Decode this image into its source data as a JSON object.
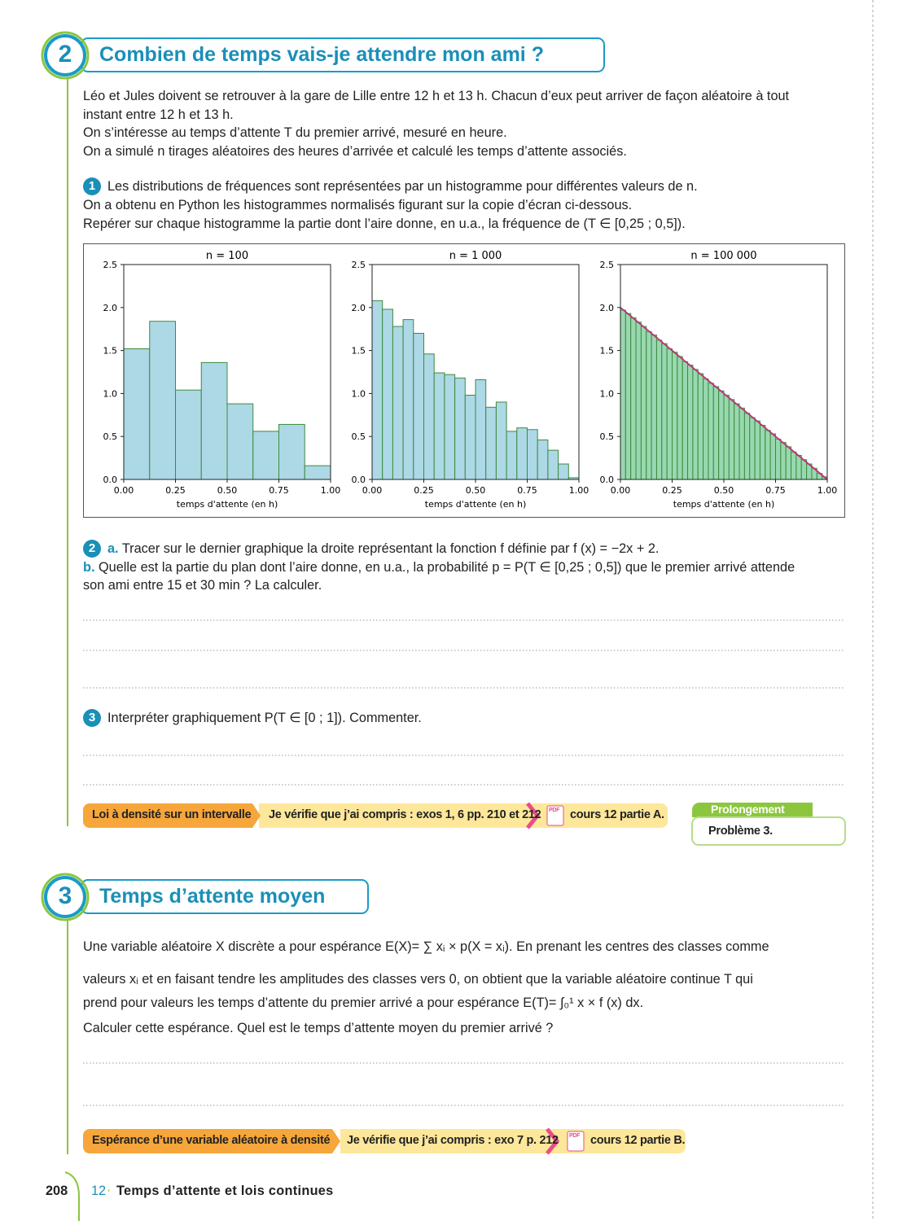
{
  "section_2": {
    "number": "2",
    "title": "Combien de temps vais-je attendre mon ami ?",
    "intro": [
      "Léo et Jules doivent se retrouver à la gare de Lille entre 12 h et 13 h. Chacun d’eux peut arriver de façon aléatoire à tout",
      "instant entre 12 h et 13 h.",
      "On s’intéresse au temps d’attente T du premier arrivé, mesuré en heure.",
      "On a simulé n tirages aléatoires des heures d’arrivée et calculé les temps d’attente associés."
    ],
    "q1": {
      "number": "1",
      "lines": [
        "Les distributions de fréquences sont représentées par un histogramme pour différentes valeurs de n.",
        "On a obtenu en Python les histogrammes normalisés figurant sur la copie d’écran ci-dessous.",
        "Repérer sur chaque histogramme la partie dont l’aire donne, en u.a., la fréquence de (T ∈ [0,25 ; 0,5])."
      ]
    },
    "q2": {
      "number": "2",
      "a_label": "a.",
      "a_text": "Tracer sur le dernier graphique la droite représentant la fonction f définie par f (x) = −2x + 2.",
      "b_label": "b.",
      "b_text": "Quelle est la partie du plan dont l’aire donne, en u.a., la probabilité p = P(T ∈ [0,25 ; 0,5]) que le premier arrivé attende",
      "b_text_2": "son ami entre 15 et 30 min ? La calculer."
    },
    "q3": {
      "number": "3",
      "text": "Interpréter graphiquement P(T ∈ [0 ; 1]). Commenter."
    },
    "bar": {
      "topic": "Loi à densité sur un intervalle",
      "check": "Je vérifie que j’ai compris : exos 1, 6 pp. 210 et 212",
      "pdf": "PDF",
      "course": "cours 12 partie A."
    },
    "extension": {
      "label": "Prolongement",
      "text": "Problème 3."
    }
  },
  "chart_data": [
    {
      "type": "histogram",
      "title": "n = 100",
      "xlabel": "temps d'attente (en h)",
      "color": "#add8e6",
      "edgecolor": "#3d8b3d",
      "bins": [
        0,
        0.125,
        0.25,
        0.375,
        0.5,
        0.625,
        0.75,
        0.875,
        1
      ],
      "values": [
        1.52,
        1.84,
        1.04,
        1.36,
        0.88,
        0.56,
        0.64,
        0.16
      ],
      "xlim": [
        0,
        1
      ],
      "ylim": [
        0,
        2.5
      ],
      "xticks": [
        {
          "value": 0,
          "label": "0.00"
        },
        0.25,
        {
          "value": 0.5,
          "label": "0.50"
        },
        0.75,
        {
          "value": 1,
          "label": "1.00"
        }
      ],
      "yticks": [
        {
          "value": 0,
          "label": "0.0"
        },
        0.5,
        {
          "value": 1,
          "label": "1.0"
        },
        1.5,
        {
          "value": 2,
          "label": "2.0"
        },
        2.5
      ]
    },
    {
      "type": "histogram",
      "title": "n = 1 000",
      "xlabel": "temps d'attente (en h)",
      "color": "#add8e6",
      "edgecolor": "#3d8b3d",
      "bins": [
        0,
        0.05,
        0.1,
        0.15,
        0.2,
        0.25,
        0.3,
        0.35,
        0.4,
        0.45,
        0.5,
        0.55,
        0.6,
        0.65,
        0.7,
        0.75,
        0.8,
        0.85,
        0.9,
        0.95,
        1
      ],
      "values": [
        2.08,
        1.98,
        1.78,
        1.86,
        1.7,
        1.46,
        1.24,
        1.22,
        1.18,
        0.98,
        1.16,
        0.84,
        0.9,
        0.56,
        0.6,
        0.58,
        0.46,
        0.34,
        0.18,
        0.02
      ],
      "xlim": [
        0,
        1
      ],
      "ylim": [
        0,
        2.5
      ],
      "xticks": [
        {
          "value": 0,
          "label": "0.00"
        },
        0.25,
        {
          "value": 0.5,
          "label": "0.50"
        },
        0.75,
        {
          "value": 1,
          "label": "1.00"
        }
      ],
      "yticks": [
        {
          "value": 0,
          "label": "0.0"
        },
        0.5,
        {
          "value": 1,
          "label": "1.0"
        },
        1.5,
        {
          "value": 2,
          "label": "2.0"
        },
        2.5
      ]
    },
    {
      "type": "histogram",
      "title": "n = 100 000",
      "xlabel": "temps d'attente (en h)",
      "color": "#98d8b0",
      "edgecolor": "#3d8b3d",
      "bins": [
        0,
        0.025,
        0.05,
        0.075,
        0.1,
        0.125,
        0.15,
        0.175,
        0.2,
        0.225,
        0.25,
        0.275,
        0.3,
        0.325,
        0.35,
        0.375,
        0.4,
        0.425,
        0.45,
        0.475,
        0.5,
        0.525,
        0.55,
        0.575,
        0.6,
        0.625,
        0.65,
        0.675,
        0.7,
        0.725,
        0.75,
        0.775,
        0.8,
        0.825,
        0.85,
        0.875,
        0.9,
        0.925,
        0.95,
        0.975,
        1
      ],
      "values": [
        1.97,
        1.93,
        1.88,
        1.83,
        1.78,
        1.72,
        1.68,
        1.62,
        1.58,
        1.52,
        1.48,
        1.43,
        1.37,
        1.33,
        1.28,
        1.23,
        1.17,
        1.12,
        1.08,
        1.03,
        0.98,
        0.93,
        0.88,
        0.83,
        0.77,
        0.72,
        0.68,
        0.63,
        0.57,
        0.53,
        0.47,
        0.43,
        0.38,
        0.32,
        0.28,
        0.23,
        0.18,
        0.13,
        0.07,
        0.03
      ],
      "line": {
        "x": [
          0,
          1
        ],
        "values": [
          2,
          0
        ],
        "color": "#c0307a"
      },
      "xlim": [
        0,
        1
      ],
      "ylim": [
        0,
        2.5
      ],
      "xticks": [
        {
          "value": 0,
          "label": "0.00"
        },
        0.25,
        {
          "value": 0.5,
          "label": "0.50"
        },
        0.75,
        {
          "value": 1,
          "label": "1.00"
        }
      ],
      "yticks": [
        {
          "value": 0,
          "label": "0.0"
        },
        0.5,
        {
          "value": 1,
          "label": "1.0"
        },
        1.5,
        {
          "value": 2,
          "label": "2.0"
        },
        2.5
      ]
    }
  ],
  "section_3": {
    "number": "3",
    "title": "Temps d’attente moyen",
    "lines": [
      "Une variable aléatoire X discrète a pour espérance E(X)= ∑ xᵢ × p(X = xᵢ). En prenant les centres des classes comme",
      "valeurs xᵢ et en faisant tendre les amplitudes des classes vers 0, on obtient que la variable aléatoire continue T qui",
      "prend pour valeurs les temps d’attente du premier arrivé a pour espérance E(T)= ∫₀¹ x × f (x) dx.",
      "Calculer cette espérance. Quel est le temps d’attente moyen du premier arrivé ?"
    ],
    "bar": {
      "topic": "Espérance d’une variable aléatoire à densité",
      "check": "Je vérifie que j’ai compris : exo 7 p. 212",
      "pdf": "PDF",
      "course": "cours 12 partie B."
    }
  },
  "page_footer": {
    "page": "208",
    "chapter": "12",
    "chapter_title": "Temps d’attente et lois continues"
  }
}
